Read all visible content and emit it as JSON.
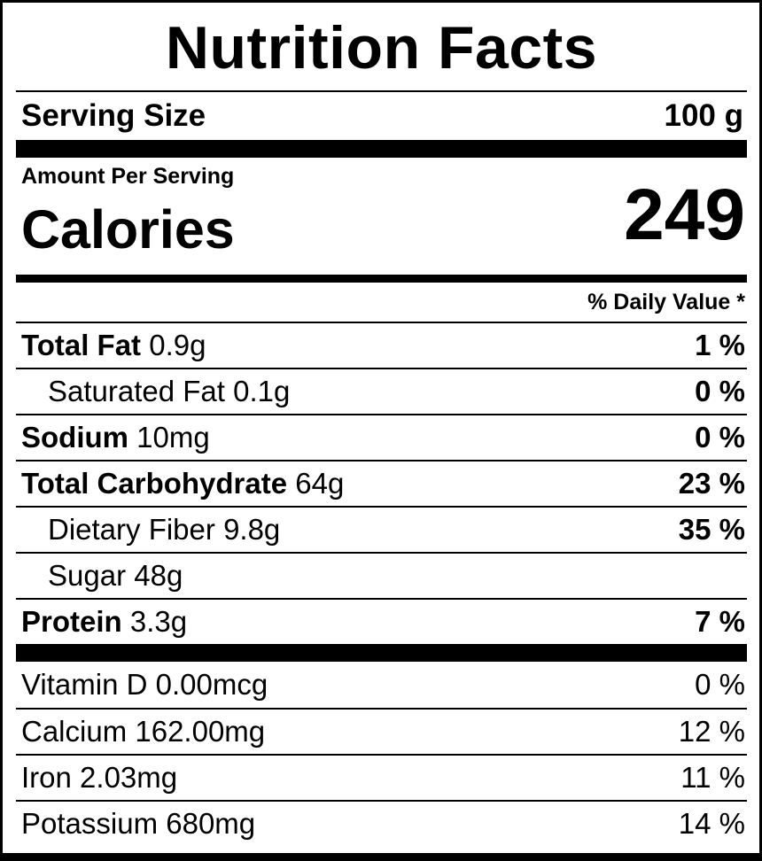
{
  "label": {
    "title": "Nutrition Facts",
    "serving_size_label": "Serving Size",
    "serving_size_value": "100 g",
    "amount_per_serving": "Amount Per Serving",
    "calories_label": "Calories",
    "calories_value": "249",
    "daily_value_header": "% Daily Value *",
    "nutrients": [
      {
        "bold_name": "Total Fat",
        "amount": "0.9g",
        "percent": "1 %"
      },
      {
        "name": "Saturated Fat",
        "amount": "0.1g",
        "percent": "0 %"
      },
      {
        "bold_name": "Sodium",
        "amount": "10mg",
        "percent": "0 %"
      },
      {
        "bold_name": "Total Carbohydrate",
        "amount": "64g",
        "percent": "23 %"
      },
      {
        "name": "Dietary Fiber",
        "amount": "9.8g",
        "percent": "35 %"
      },
      {
        "name": "Sugar",
        "amount": "48g",
        "percent": ""
      },
      {
        "bold_name": "Protein",
        "amount": "3.3g",
        "percent": "7 %"
      }
    ],
    "vitamins": [
      {
        "name": "Vitamin D",
        "amount": "0.00mcg",
        "percent": "0 %"
      },
      {
        "name": "Calcium",
        "amount": "162.00mg",
        "percent": "12 %"
      },
      {
        "name": "Iron",
        "amount": "2.03mg",
        "percent": "11 %"
      },
      {
        "name": "Potassium",
        "amount": "680mg",
        "percent": "14 %"
      }
    ]
  }
}
